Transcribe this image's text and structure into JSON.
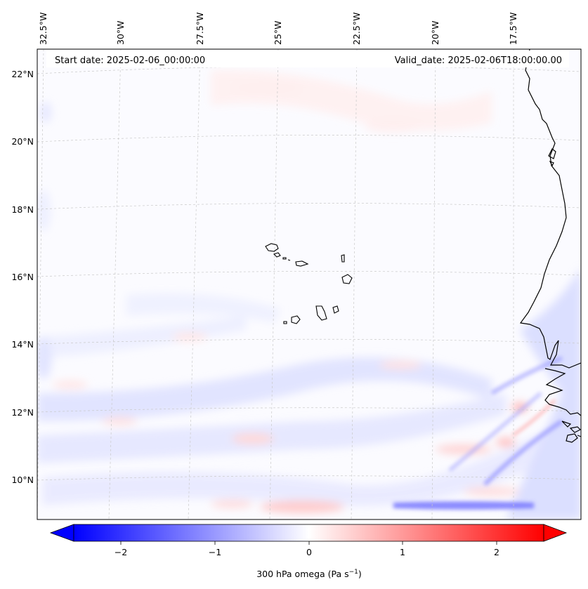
{
  "header": {
    "start_date": "Start date: 2025-02-06_00:00:00",
    "valid_date": "Valid_date: 2025-02-06T18:00:00.00"
  },
  "map": {
    "field": "300 hPa omega",
    "lon_labels": [
      "32.5°W",
      "30°W",
      "27.5°W",
      "25°W",
      "22.5°W",
      "20°W",
      "17.5°W"
    ],
    "lat_labels": [
      "22°N",
      "20°N",
      "18°N",
      "16°N",
      "14°N",
      "12°N",
      "10°N"
    ]
  },
  "colorbar": {
    "title": "300 hPa omega (Pa s",
    "title_exponent": "−1",
    "title_suffix": ")",
    "ticks": [
      "−2",
      "−1",
      "0",
      "1",
      "2"
    ],
    "range": [
      -2.6,
      2.6
    ],
    "colors": {
      "negative": "#0000ff",
      "zero": "#ffffff",
      "positive": "#ff0000"
    }
  }
}
